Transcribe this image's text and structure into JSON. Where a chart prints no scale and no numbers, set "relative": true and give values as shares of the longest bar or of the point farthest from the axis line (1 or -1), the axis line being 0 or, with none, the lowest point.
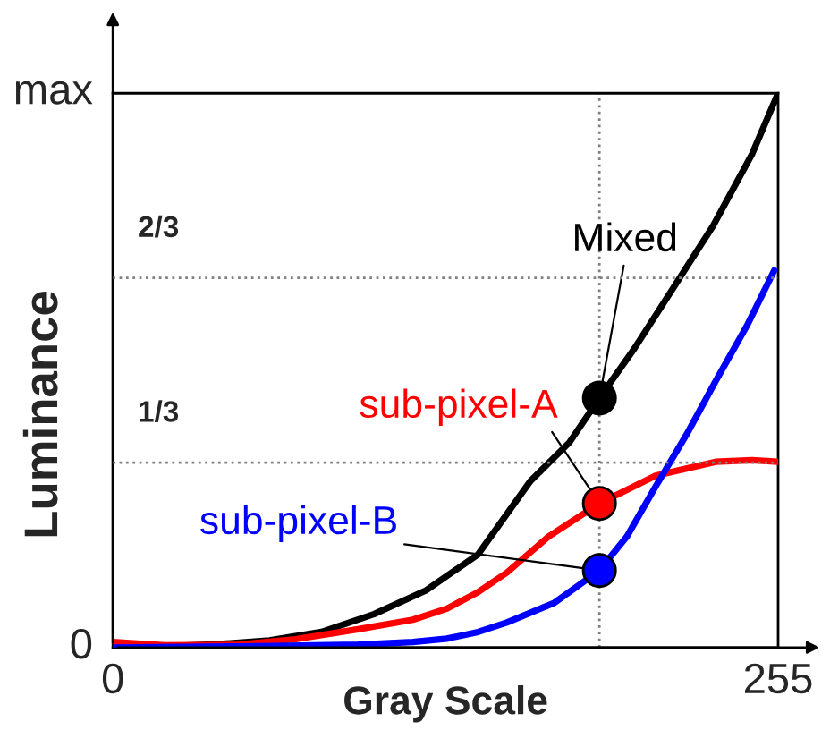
{
  "chart_data": {
    "type": "line",
    "xlabel": "Gray Scale",
    "ylabel": "Luminance",
    "xlim": [
      0,
      255
    ],
    "relative": true,
    "xticks": [
      0,
      255
    ],
    "annotations": [
      {
        "text": "2/3",
        "x": 0,
        "y": 0.6666666667
      },
      {
        "text": "1/3",
        "x": 0,
        "y": 0.3333333333
      },
      "0"
    ],
    "legend": false,
    "marker": "none",
    "line_style": "solid",
    "ref_lines": [
      {
        "axis": "y",
        "value": 1,
        "label": "max",
        "color": "#000000",
        "line_style": "solid"
      },
      {
        "axis": "y",
        "value": 0.6666666667,
        "color": "#808080",
        "line_style": "dotted"
      },
      {
        "axis": "y",
        "value": 0.3333333333,
        "color": "#808080",
        "line_style": "dotted"
      },
      {
        "axis": "x",
        "value": 186.5,
        "label": null,
        "color": "#808080",
        "line_style": "dotted"
      }
    ],
    "series": [
      {
        "name": "Mixed",
        "color": "#000000",
        "x": [
          0,
          20,
          40,
          60,
          80,
          100,
          120,
          140,
          160,
          175,
          186.5,
          200,
          215,
          230,
          245,
          255
        ],
        "values": [
          0,
          0.002,
          0.006,
          0.013,
          0.028,
          0.06,
          0.103,
          0.168,
          0.3,
          0.37,
          0.45,
          0.54,
          0.65,
          0.76,
          0.89,
          1.0
        ]
      },
      {
        "name": "sub-pixel-A",
        "color": "#ff0000",
        "x": [
          0,
          20,
          48,
          70,
          94,
          115,
          128,
          140,
          151,
          167,
          186.5,
          208,
          231,
          245,
          255
        ],
        "values": [
          0.01,
          0.004,
          0.005,
          0.015,
          0.033,
          0.05,
          0.07,
          0.1,
          0.135,
          0.2,
          0.26,
          0.31,
          0.335,
          0.338,
          0.335
        ]
      },
      {
        "name": "sub-pixel-B",
        "color": "#0000ff",
        "x": [
          0,
          50,
          94,
          115,
          128,
          140,
          151,
          169,
          186.5,
          197,
          208,
          220,
          231,
          243,
          253.5
        ],
        "values": [
          0,
          0.002,
          0.005,
          0.01,
          0.016,
          0.028,
          0.045,
          0.08,
          0.139,
          0.2,
          0.29,
          0.385,
          0.48,
          0.58,
          0.68
        ]
      },
      {
        "type": "scatter",
        "marker": "circle",
        "color": "#000000",
        "x": [
          186.5
        ],
        "values": [
          0.45
        ]
      },
      {
        "type": "scatter",
        "marker": "circle",
        "color": "#ff0000",
        "x": [
          186.5
        ],
        "values": [
          0.26
        ]
      },
      {
        "type": "scatter",
        "marker": "circle",
        "color": "#0000ff",
        "x": [
          186.5
        ],
        "values": [
          0.139
        ]
      }
    ]
  }
}
